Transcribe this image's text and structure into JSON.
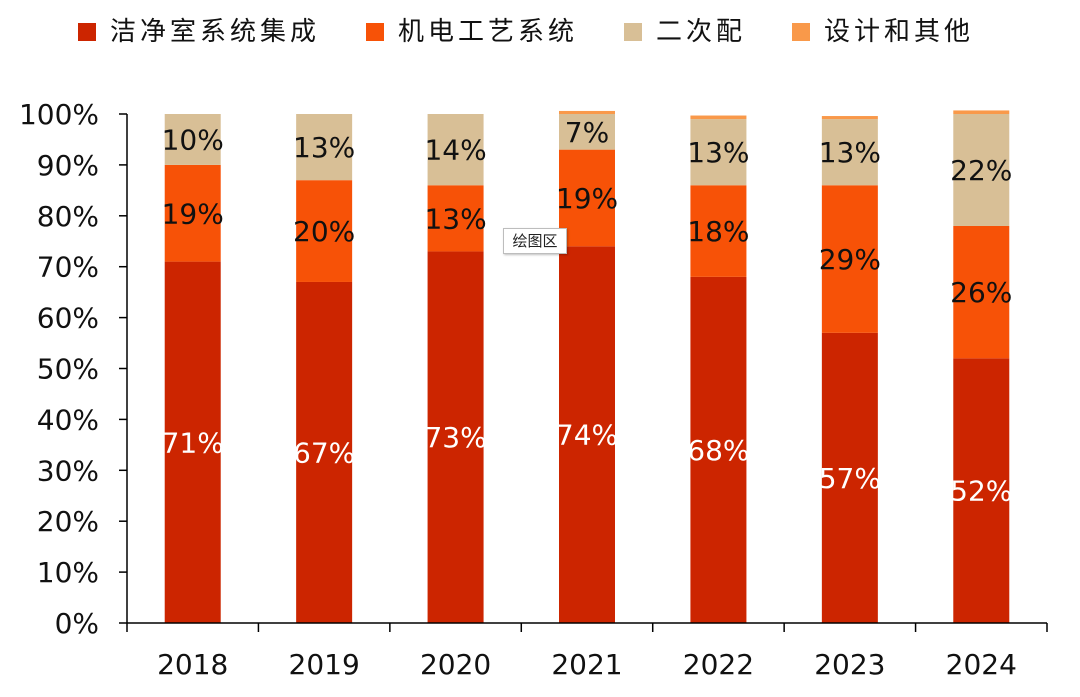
{
  "chart_data": {
    "type": "bar",
    "stacked": true,
    "categories": [
      "2018",
      "2019",
      "2020",
      "2021",
      "2022",
      "2023",
      "2024"
    ],
    "series": [
      {
        "name": "洁净室系统集成",
        "color": "#cc2500",
        "values": [
          71,
          67,
          73,
          74,
          68,
          57,
          52
        ],
        "labels": [
          "71%",
          "67%",
          "73%",
          "74%",
          "68%",
          "57%",
          "52%"
        ]
      },
      {
        "name": "机电工艺系统",
        "color": "#f75207",
        "values": [
          19,
          20,
          13,
          19,
          18,
          29,
          26
        ],
        "labels": [
          "19%",
          "20%",
          "13%",
          "19%",
          "18%",
          "29%",
          "26%"
        ]
      },
      {
        "name": "二次配",
        "color": "#d8bf96",
        "values": [
          10,
          13,
          14,
          7,
          13,
          13,
          22
        ],
        "labels": [
          "10%",
          "13%",
          "14%",
          "7%",
          "13%",
          "13%",
          "22%"
        ]
      },
      {
        "name": "设计和其他",
        "color": "#f9994a",
        "values": [
          0,
          0,
          0,
          0.6,
          0.7,
          0.6,
          0.7
        ],
        "labels": [
          "",
          "",
          "",
          "",
          "",
          "",
          ""
        ]
      }
    ],
    "ylim": [
      0,
      100
    ],
    "yticks": [
      "0%",
      "10%",
      "20%",
      "30%",
      "40%",
      "50%",
      "60%",
      "70%",
      "80%",
      "90%",
      "100%"
    ],
    "grid": false,
    "legend_position": "top"
  },
  "tooltip": {
    "text": "绘图区"
  }
}
